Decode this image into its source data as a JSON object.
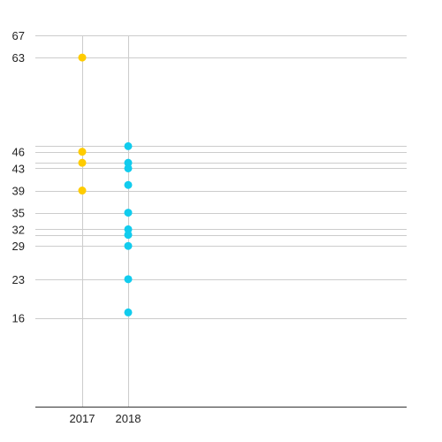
{
  "chart_data": {
    "type": "scatter",
    "title": "",
    "xlabel": "",
    "ylabel": "",
    "categories": [
      "2017",
      "2018"
    ],
    "y_ticks": [
      16,
      23,
      29,
      31,
      32,
      35,
      39,
      43,
      44,
      46,
      47,
      63,
      67
    ],
    "y_tick_labels": [
      "16",
      "23",
      "29",
      "32",
      "35",
      "39",
      "43",
      "46",
      "63",
      "67"
    ],
    "ylim": [
      0,
      67
    ],
    "grid": true,
    "legend": "none",
    "series": [
      {
        "category": "2017",
        "color": "#FFCC00",
        "values": [
          63,
          46,
          44,
          39
        ]
      },
      {
        "category": "2018",
        "color": "#11CCEE",
        "values": [
          47,
          44,
          43,
          40,
          35,
          32,
          31,
          29,
          23,
          17
        ]
      }
    ]
  }
}
